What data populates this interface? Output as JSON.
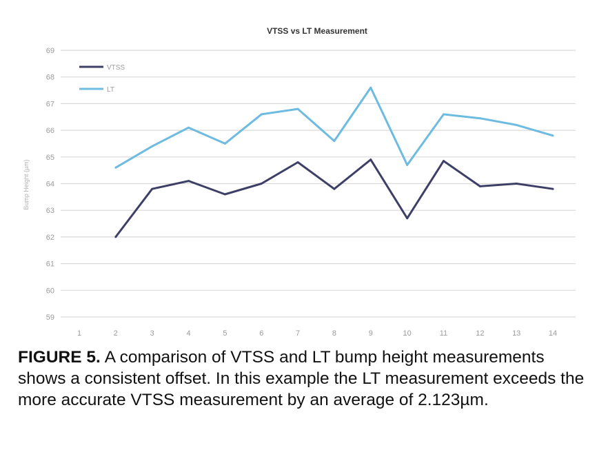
{
  "chart_data": {
    "type": "line",
    "title": "VTSS vs LT Measurement",
    "ylabel": "Bump Height (µm)",
    "xlabel": "",
    "x": [
      1,
      2,
      3,
      4,
      5,
      6,
      7,
      8,
      9,
      10,
      11,
      12,
      13,
      14
    ],
    "y_ticks": [
      "59",
      "60",
      "61",
      "62",
      "63",
      "64",
      "65",
      "66",
      "67",
      "68",
      "69"
    ],
    "ylim": [
      59,
      69
    ],
    "grid": true,
    "legend_position": "top-left",
    "series": [
      {
        "name": "VTSS",
        "color": "#3e3f66",
        "values": [
          null,
          62.0,
          63.8,
          64.1,
          63.6,
          64.0,
          64.8,
          63.8,
          64.9,
          62.7,
          64.85,
          63.9,
          64.0,
          63.8
        ]
      },
      {
        "name": "LT",
        "color": "#6dbbe0",
        "values": [
          null,
          64.6,
          65.4,
          66.1,
          65.5,
          66.6,
          66.8,
          65.6,
          67.6,
          64.7,
          66.6,
          66.45,
          66.2,
          65.8
        ]
      }
    ]
  },
  "caption": {
    "figure_label": "FIGURE 5.",
    "text": "A comparison of VTSS and LT bump height measurements shows a consistent offset. In this example the LT measurement exceeds the more accurate VTSS measurement by an average of 2.123µm."
  }
}
